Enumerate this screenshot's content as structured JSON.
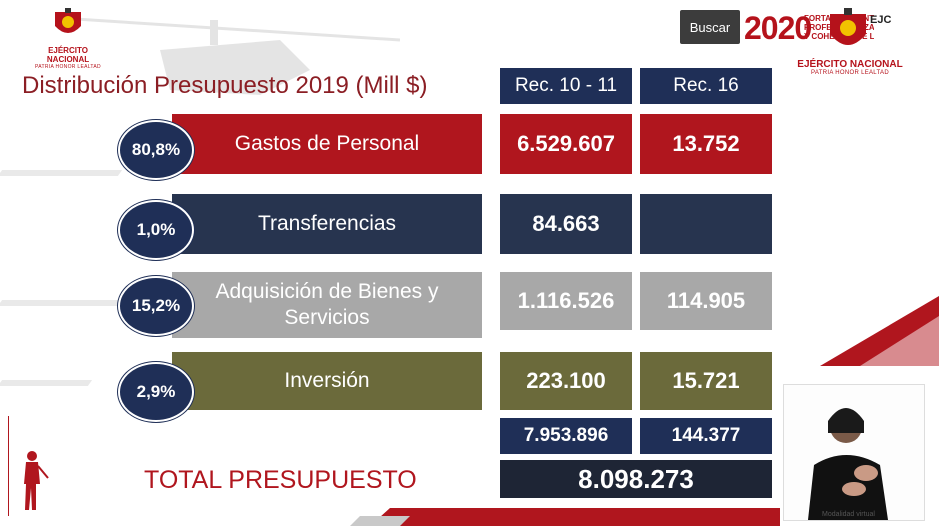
{
  "search_button": "Buscar",
  "branding": {
    "left_title": "EJÉRCITO NACIONAL",
    "left_subtitle": "PATRIA HONOR LEALTAD",
    "right_title": "EJÉRCITO NACIONAL",
    "right_subtitle": "PATRIA HONOR LEALTAD",
    "year": "2020",
    "motto_lines": [
      "FORTALECIMIENTO",
      "PROFESIONALIZACIÓN",
      "Y COHESIÓN DE LA"
    ],
    "ejc": "EJC",
    "video_caption": "Modalidad virtual"
  },
  "slide": {
    "title": "Distribución Presupuesto 2019 (Mill $)",
    "col1": "Rec. 10 - 11",
    "col2": "Rec. 16",
    "rows": [
      {
        "pct": "80,8%",
        "label": "Gastos de Personal",
        "v1": "6.529.607",
        "v2": "13.752"
      },
      {
        "pct": "1,0%",
        "label": "Transferencias",
        "v1": "84.663",
        "v2": ""
      },
      {
        "pct": "15,2%",
        "label_l1": "Adquisición de Bienes y",
        "label_l2": "Servicios",
        "v1": "1.116.526",
        "v2": "114.905"
      },
      {
        "pct": "2,9%",
        "label": "Inversión",
        "v1": "223.100",
        "v2": "15.721"
      }
    ],
    "subtotal1": "7.953.896",
    "subtotal2": "144.377",
    "total_label": "TOTAL PRESUPUESTO",
    "total": "8.098.273"
  },
  "colors": {
    "red": "#b0161e",
    "navy": "#1f2f57",
    "gray": "#a8a8a8",
    "olive": "#6b6a3b",
    "title": "#8b1e24"
  }
}
